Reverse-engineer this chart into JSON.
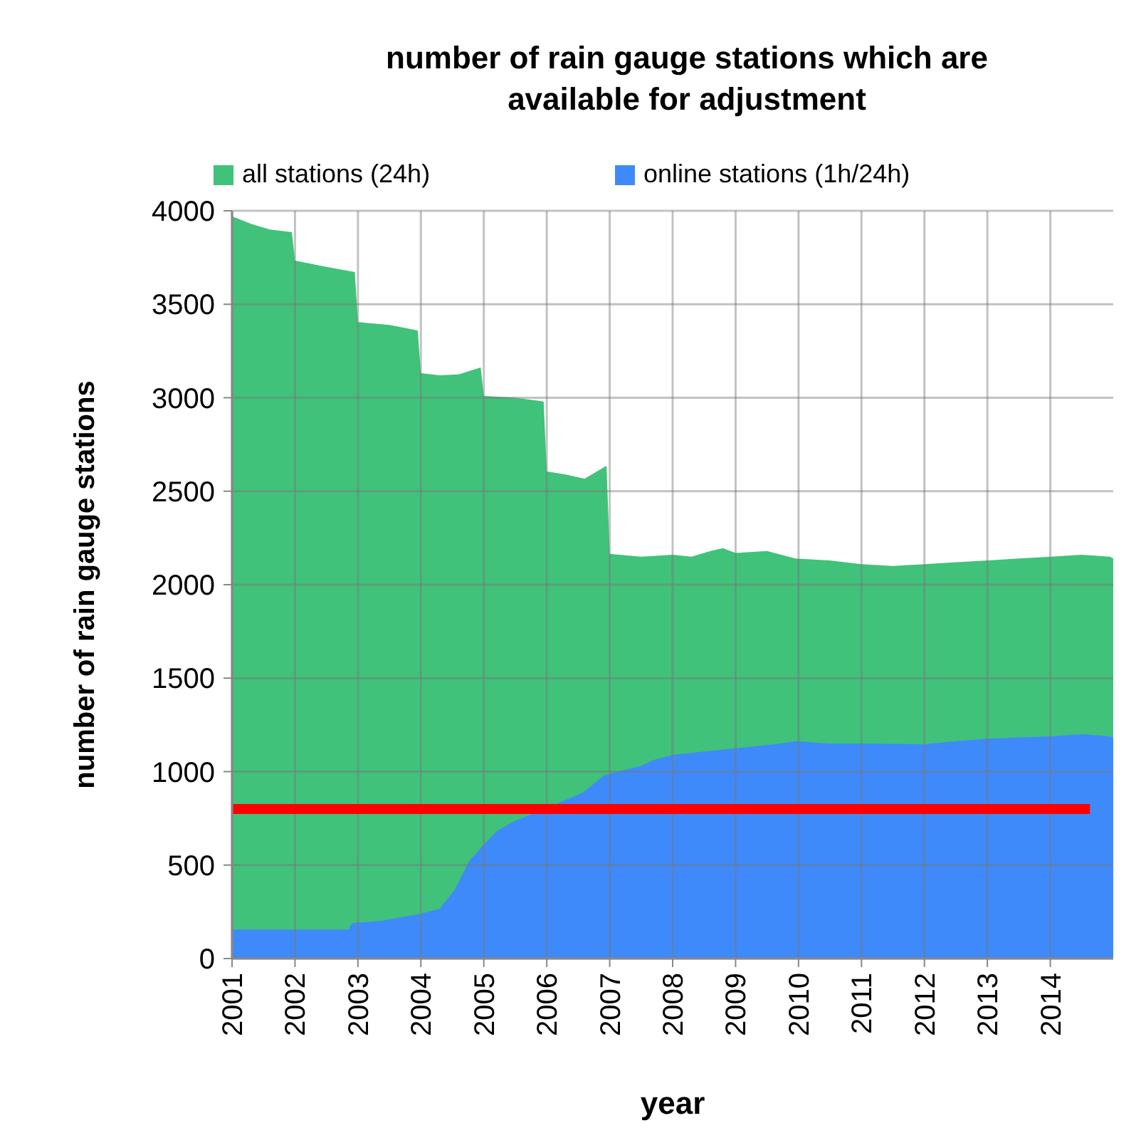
{
  "chart_data": {
    "type": "area",
    "title": "number of rain gauge stations which are available for adjustment",
    "xlabel": "year",
    "ylabel": "number of rain gauge stations",
    "xlim": [
      2001,
      2015
    ],
    "xticks": [
      2001,
      2002,
      2003,
      2004,
      2005,
      2006,
      2007,
      2008,
      2009,
      2010,
      2011,
      2012,
      2013,
      2014
    ],
    "ylim": [
      0,
      4000
    ],
    "yticks": [
      0,
      500,
      1000,
      1500,
      2000,
      2500,
      3000,
      3500,
      4000
    ],
    "grid": true,
    "legend": "top",
    "series": [
      {
        "name": "all stations (24h)",
        "color": "#40c27a",
        "x": [
          2001,
          2001.3,
          2001.6,
          2001.95,
          2002,
          2002.5,
          2002.95,
          2003,
          2003.5,
          2003.95,
          2004,
          2004.3,
          2004.6,
          2004.95,
          2005,
          2005.5,
          2005.95,
          2006,
          2006.3,
          2006.6,
          2006.95,
          2007,
          2007.5,
          2008,
          2008.3,
          2008.6,
          2008.8,
          2009,
          2009.5,
          2009.95,
          2010.5,
          2011,
          2011.5,
          2012,
          2012.5,
          2013,
          2013.5,
          2014,
          2014.5,
          2014.95,
          2015
        ],
        "values": [
          3970,
          3930,
          3900,
          3886,
          3733,
          3700,
          3672,
          3405,
          3390,
          3360,
          3131,
          3120,
          3125,
          3162,
          3010,
          3000,
          2980,
          2606,
          2590,
          2567,
          2636,
          2165,
          2150,
          2160,
          2150,
          2180,
          2195,
          2170,
          2180,
          2140,
          2130,
          2110,
          2100,
          2110,
          2120,
          2130,
          2140,
          2150,
          2160,
          2150,
          2140
        ]
      },
      {
        "name": "online stations (1h/24h)",
        "color": "#3f8afa",
        "x": [
          2001,
          2002.85,
          2002.9,
          2003.34,
          2004,
          2004.3,
          2004.54,
          2004.77,
          2005,
          2005.22,
          2005.5,
          2005.97,
          2006.58,
          2006.91,
          2007,
          2007.48,
          2007.7,
          2008,
          2009,
          2009.7,
          2009.96,
          2010.5,
          2011,
          2012,
          2012.5,
          2013,
          2014,
          2014.5,
          2014.95,
          2015
        ],
        "values": [
          155,
          155,
          190,
          200,
          240,
          267,
          370,
          523,
          610,
          686,
          737,
          800,
          889,
          980,
          990,
          1029,
          1062,
          1090,
          1125,
          1150,
          1163,
          1150,
          1150,
          1146,
          1163,
          1176,
          1189,
          1200,
          1189,
          1180
        ]
      },
      {
        "type": "line",
        "color": "#ff0000",
        "x": [
          2001,
          2014.63
        ],
        "values": [
          800,
          800
        ]
      }
    ]
  }
}
